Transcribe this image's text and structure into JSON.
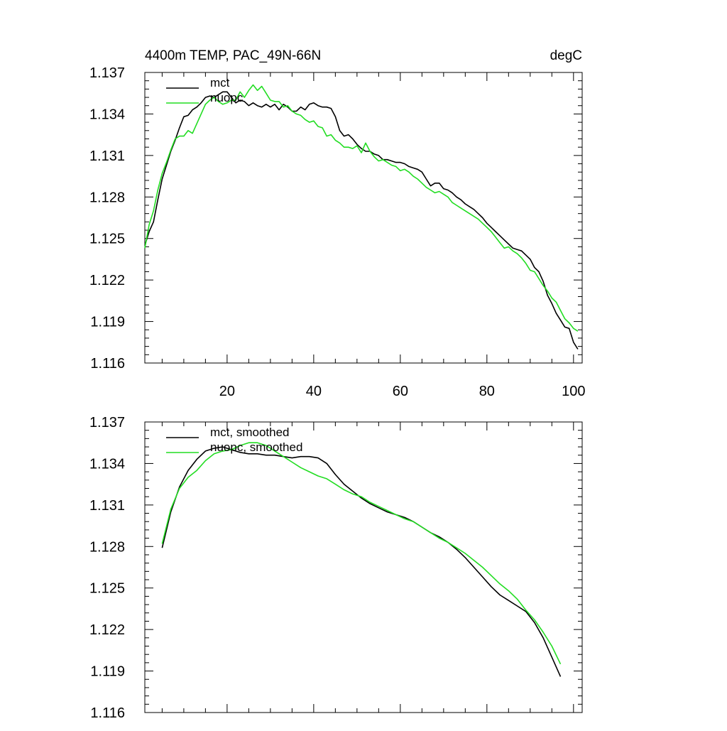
{
  "chart_data": [
    {
      "type": "line",
      "title": "4400m TEMP, PAC_49N-66N",
      "units": "degC",
      "xlabel": "",
      "ylabel": "",
      "xlim": [
        1,
        102
      ],
      "ylim": [
        1.116,
        1.137
      ],
      "xticks": [
        20,
        40,
        60,
        80,
        100
      ],
      "xtick_labels": [
        "20",
        "40",
        "60",
        "80",
        "100"
      ],
      "yticks": [
        1.116,
        1.119,
        1.122,
        1.125,
        1.128,
        1.131,
        1.134,
        1.137
      ],
      "ytick_labels": [
        "1.116",
        "1.119",
        "1.122",
        "1.125",
        "1.128",
        "1.131",
        "1.134",
        "1.137"
      ],
      "legend_position": "top-left",
      "series": [
        {
          "name": "mct",
          "color": "#000000",
          "x": [
            1,
            2,
            3,
            4,
            5,
            6,
            7,
            8,
            9,
            10,
            11,
            12,
            13,
            14,
            15,
            16,
            17,
            18,
            19,
            20,
            21,
            22,
            23,
            24,
            25,
            26,
            27,
            28,
            29,
            30,
            31,
            32,
            33,
            34,
            35,
            36,
            37,
            38,
            39,
            40,
            41,
            42,
            43,
            44,
            45,
            46,
            47,
            48,
            49,
            50,
            51,
            52,
            53,
            54,
            55,
            56,
            57,
            58,
            59,
            60,
            61,
            62,
            63,
            64,
            65,
            66,
            67,
            68,
            69,
            70,
            71,
            72,
            73,
            74,
            75,
            76,
            77,
            78,
            79,
            80,
            81,
            82,
            83,
            84,
            85,
            86,
            87,
            88,
            89,
            90,
            91,
            92,
            93,
            94,
            95,
            96,
            97,
            98,
            99,
            100,
            101
          ],
          "values": [
            1.1245,
            1.1255,
            1.1262,
            1.1278,
            1.1293,
            1.1303,
            1.1313,
            1.1321,
            1.133,
            1.1338,
            1.1339,
            1.1343,
            1.1345,
            1.1348,
            1.1352,
            1.1353,
            1.1352,
            1.1354,
            1.1356,
            1.1356,
            1.1352,
            1.1348,
            1.135,
            1.1349,
            1.1346,
            1.1348,
            1.1346,
            1.1345,
            1.1347,
            1.1345,
            1.1347,
            1.1343,
            1.1347,
            1.1345,
            1.1342,
            1.1342,
            1.1345,
            1.1343,
            1.1347,
            1.1348,
            1.1346,
            1.1345,
            1.1345,
            1.1344,
            1.1338,
            1.1328,
            1.1324,
            1.1325,
            1.1322,
            1.1318,
            1.1315,
            1.1313,
            1.1313,
            1.1311,
            1.131,
            1.1307,
            1.1307,
            1.1306,
            1.1305,
            1.1305,
            1.1304,
            1.1302,
            1.1301,
            1.13,
            1.1298,
            1.1293,
            1.1288,
            1.129,
            1.129,
            1.1286,
            1.1285,
            1.1283,
            1.128,
            1.1278,
            1.1275,
            1.1273,
            1.1271,
            1.1268,
            1.1265,
            1.1261,
            1.1258,
            1.1255,
            1.1252,
            1.1249,
            1.1246,
            1.1243,
            1.1242,
            1.1241,
            1.1238,
            1.1235,
            1.1229,
            1.1226,
            1.1219,
            1.1209,
            1.1203,
            1.1196,
            1.1191,
            1.1186,
            1.1185,
            1.1175,
            1.117
          ]
        },
        {
          "name": "nuopc",
          "color": "#22dd22",
          "x": [
            1,
            2,
            3,
            4,
            5,
            6,
            7,
            8,
            9,
            10,
            11,
            12,
            13,
            14,
            15,
            16,
            17,
            18,
            19,
            20,
            21,
            22,
            23,
            24,
            25,
            26,
            27,
            28,
            29,
            30,
            31,
            32,
            33,
            34,
            35,
            36,
            37,
            38,
            39,
            40,
            41,
            42,
            43,
            44,
            45,
            46,
            47,
            48,
            49,
            50,
            51,
            52,
            53,
            54,
            55,
            56,
            57,
            58,
            59,
            60,
            61,
            62,
            63,
            64,
            65,
            66,
            67,
            68,
            69,
            70,
            71,
            72,
            73,
            74,
            75,
            76,
            77,
            78,
            79,
            80,
            81,
            82,
            83,
            84,
            85,
            86,
            87,
            88,
            89,
            90,
            91,
            92,
            93,
            94,
            95,
            96,
            97,
            98,
            99,
            100,
            101
          ],
          "values": [
            1.1243,
            1.126,
            1.127,
            1.1285,
            1.1297,
            1.1305,
            1.1314,
            1.1322,
            1.1324,
            1.1324,
            1.1328,
            1.1326,
            1.1333,
            1.134,
            1.1347,
            1.135,
            1.1352,
            1.1349,
            1.1347,
            1.1348,
            1.135,
            1.135,
            1.1356,
            1.1352,
            1.1357,
            1.1361,
            1.1357,
            1.136,
            1.1355,
            1.135,
            1.1349,
            1.1349,
            1.1345,
            1.1346,
            1.1342,
            1.134,
            1.1339,
            1.1336,
            1.1334,
            1.1335,
            1.1331,
            1.133,
            1.1324,
            1.1325,
            1.1321,
            1.1319,
            1.1316,
            1.1316,
            1.1315,
            1.1317,
            1.1312,
            1.1319,
            1.1313,
            1.1309,
            1.1306,
            1.1307,
            1.1305,
            1.1303,
            1.1302,
            1.1299,
            1.13,
            1.1298,
            1.1295,
            1.1293,
            1.129,
            1.1287,
            1.1285,
            1.1283,
            1.1284,
            1.1282,
            1.128,
            1.1276,
            1.1274,
            1.1272,
            1.127,
            1.1268,
            1.1266,
            1.1264,
            1.1261,
            1.1258,
            1.1255,
            1.1251,
            1.1247,
            1.1243,
            1.1244,
            1.1241,
            1.1239,
            1.1236,
            1.1232,
            1.1227,
            1.1226,
            1.1221,
            1.1216,
            1.1212,
            1.1207,
            1.1204,
            1.1198,
            1.1192,
            1.1189,
            1.1185,
            1.1183
          ]
        }
      ]
    },
    {
      "type": "line",
      "title": "",
      "xlabel": "",
      "ylabel": "",
      "xlim": [
        1,
        102
      ],
      "ylim": [
        1.116,
        1.137
      ],
      "xticks": [
        20,
        40,
        60,
        80,
        100
      ],
      "xtick_labels": [],
      "yticks": [
        1.116,
        1.119,
        1.122,
        1.125,
        1.128,
        1.131,
        1.134,
        1.137
      ],
      "ytick_labels": [
        "1.116",
        "1.119",
        "1.122",
        "1.125",
        "1.128",
        "1.131",
        "1.134",
        "1.137"
      ],
      "legend_position": "top-left",
      "series": [
        {
          "name": "mct, smoothed",
          "color": "#000000",
          "x": [
            5,
            7,
            9,
            11,
            13,
            15,
            17,
            19,
            21,
            23,
            25,
            27,
            29,
            31,
            33,
            35,
            37,
            39,
            41,
            43,
            45,
            47,
            49,
            51,
            53,
            55,
            57,
            59,
            61,
            63,
            65,
            67,
            69,
            71,
            73,
            75,
            77,
            79,
            81,
            83,
            85,
            87,
            89,
            91,
            93,
            95,
            97
          ],
          "values": [
            1.1279,
            1.1305,
            1.1323,
            1.1335,
            1.1343,
            1.1349,
            1.1351,
            1.1352,
            1.135,
            1.1348,
            1.1347,
            1.1347,
            1.1346,
            1.1346,
            1.1345,
            1.1344,
            1.1345,
            1.1345,
            1.1344,
            1.134,
            1.1332,
            1.1325,
            1.132,
            1.1315,
            1.1311,
            1.1308,
            1.1305,
            1.1303,
            1.1301,
            1.1298,
            1.1294,
            1.129,
            1.1287,
            1.1283,
            1.1278,
            1.1272,
            1.1265,
            1.1258,
            1.1251,
            1.1245,
            1.1241,
            1.1237,
            1.1233,
            1.1225,
            1.1214,
            1.12,
            1.1186
          ]
        },
        {
          "name": "nuopc, smoothed",
          "color": "#22dd22",
          "x": [
            5,
            7,
            9,
            11,
            13,
            15,
            17,
            19,
            21,
            23,
            25,
            27,
            29,
            31,
            33,
            35,
            37,
            39,
            41,
            43,
            45,
            47,
            49,
            51,
            53,
            55,
            57,
            59,
            61,
            63,
            65,
            67,
            69,
            71,
            73,
            75,
            77,
            79,
            81,
            83,
            85,
            87,
            89,
            91,
            93,
            95,
            97
          ],
          "values": [
            1.1282,
            1.1307,
            1.1322,
            1.133,
            1.1335,
            1.1342,
            1.1347,
            1.1349,
            1.135,
            1.1353,
            1.1355,
            1.1355,
            1.1353,
            1.1349,
            1.1345,
            1.1341,
            1.1337,
            1.1334,
            1.1331,
            1.1329,
            1.1325,
            1.1321,
            1.1318,
            1.1316,
            1.1312,
            1.1309,
            1.1306,
            1.1303,
            1.13,
            1.1298,
            1.1294,
            1.129,
            1.1286,
            1.1283,
            1.1279,
            1.1275,
            1.127,
            1.1265,
            1.1259,
            1.1253,
            1.1248,
            1.1242,
            1.1234,
            1.1227,
            1.1218,
            1.1208,
            1.1195
          ]
        }
      ]
    }
  ]
}
